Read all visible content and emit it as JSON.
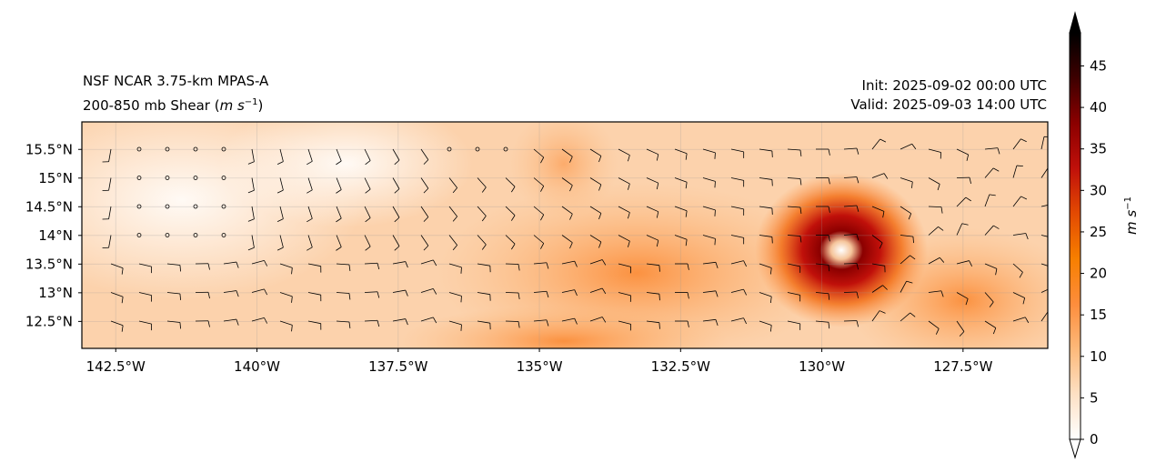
{
  "title": {
    "left_line1": "NSF NCAR 3.75-km MPAS-A",
    "left_line2_prefix": "200-850 mb Shear (",
    "left_line2_units": "m s",
    "left_line2_exp": "−1",
    "left_line2_suffix": ")",
    "init": "Init: 2025-09-02 00:00 UTC",
    "valid": "Valid: 2025-09-03 14:00 UTC"
  },
  "map": {
    "lon_range": [
      -143.1,
      -126.0
    ],
    "lat_range": [
      12.03,
      15.98
    ],
    "lon_ticks": [
      {
        "value": -142.5,
        "label": "142.5°W"
      },
      {
        "value": -140,
        "label": "140°W"
      },
      {
        "value": -137.5,
        "label": "137.5°W"
      },
      {
        "value": -135,
        "label": "135°W"
      },
      {
        "value": -132.5,
        "label": "132.5°W"
      },
      {
        "value": -130,
        "label": "130°W"
      },
      {
        "value": -127.5,
        "label": "127.5°W"
      }
    ],
    "lat_ticks": [
      {
        "value": 15.5,
        "label": "15.5°N"
      },
      {
        "value": 15,
        "label": "15°N"
      },
      {
        "value": 14.5,
        "label": "14.5°N"
      },
      {
        "value": 14,
        "label": "14°N"
      },
      {
        "value": 13.5,
        "label": "13.5°N"
      },
      {
        "value": 13,
        "label": "13°N"
      },
      {
        "value": 12.5,
        "label": "12.5°N"
      }
    ]
  },
  "colorbar": {
    "label_base": "m s",
    "label_exp": "−1",
    "range": [
      0,
      49
    ],
    "ticks": [
      0,
      5,
      10,
      15,
      20,
      25,
      30,
      35,
      40,
      45
    ],
    "colors": [
      "#ffffff",
      "#fde0c4",
      "#fdb97a",
      "#fd8d3c",
      "#f77f00",
      "#e34a02",
      "#c0100a",
      "#8b0000",
      "#3d0000",
      "#000000"
    ]
  }
}
